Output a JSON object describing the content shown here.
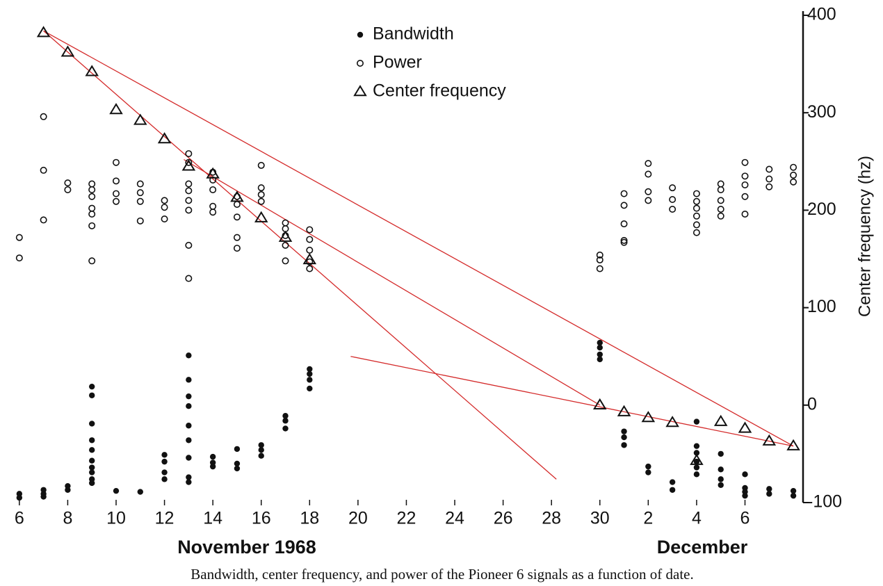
{
  "chart_data": {
    "type": "scatter",
    "caption": "Bandwidth, center frequency, and power  of the Pioneer 6 signals as a function of date.",
    "x_labels": [
      "November 1968",
      "December"
    ],
    "y_label": "Center frequency (hz)",
    "xlim": [
      5.2,
      38.4
    ],
    "xticks": [
      6,
      8,
      10,
      12,
      14,
      16,
      18,
      20,
      22,
      24,
      26,
      28,
      30,
      {
        "value": 32,
        "label": "2"
      },
      {
        "value": 34,
        "label": "4"
      },
      {
        "value": 36,
        "label": "6"
      }
    ],
    "ylim": [
      -100,
      400
    ],
    "yticks": [
      400,
      300,
      200,
      100,
      0,
      -100
    ],
    "series": [
      {
        "name": "Bandwidth",
        "marker": "dot",
        "color": "#111111",
        "x": [
          6,
          6,
          7,
          7,
          7,
          8,
          8,
          9,
          9,
          9,
          9,
          9,
          9,
          9,
          9,
          9,
          9,
          10,
          11,
          12,
          12,
          12,
          12,
          13,
          13,
          13,
          13,
          13,
          13,
          13,
          13,
          13,
          14,
          14,
          14,
          15,
          15,
          15,
          16,
          16,
          16,
          17,
          17,
          17,
          18,
          18,
          18,
          18,
          30,
          30,
          30,
          30,
          31,
          31,
          31,
          32,
          32,
          33,
          33,
          34,
          34,
          34,
          34,
          34,
          34,
          35,
          35,
          35,
          35,
          36,
          36,
          36,
          36,
          37,
          37,
          38,
          38
        ],
        "values": [
          -91,
          -95,
          -87,
          -91,
          -94,
          -83,
          -87,
          19,
          10,
          -19,
          -36,
          -46,
          -57,
          -64,
          -69,
          -76,
          -80,
          -88,
          -89,
          -51,
          -58,
          -69,
          -76,
          51,
          26,
          9,
          -1,
          -21,
          -36,
          -54,
          -74,
          -79,
          -53,
          -59,
          -63,
          -45,
          -60,
          -65,
          -41,
          -46,
          -52,
          -11,
          -16,
          -24,
          37,
          32,
          26,
          17,
          64,
          59,
          52,
          47,
          -27,
          -33,
          -41,
          -63,
          -69,
          -79,
          -87,
          -17,
          -42,
          -49,
          -58,
          -64,
          -71,
          -50,
          -66,
          -76,
          -82,
          -71,
          -85,
          -89,
          -93,
          -86,
          -91,
          -88,
          -93
        ]
      },
      {
        "name": "Power",
        "marker": "circle",
        "color": "#111111",
        "x": [
          6,
          6,
          7,
          7,
          7,
          8,
          8,
          9,
          9,
          9,
          9,
          9,
          9,
          9,
          10,
          10,
          10,
          10,
          11,
          11,
          11,
          11,
          12,
          12,
          12,
          13,
          13,
          13,
          13,
          13,
          13,
          13,
          13,
          14,
          14,
          14,
          14,
          14,
          15,
          15,
          15,
          15,
          15,
          16,
          16,
          16,
          16,
          17,
          17,
          17,
          17,
          17,
          18,
          18,
          18,
          18,
          18,
          30,
          30,
          30,
          31,
          31,
          31,
          31,
          31,
          32,
          32,
          32,
          32,
          33,
          33,
          33,
          34,
          34,
          34,
          34,
          34,
          34,
          35,
          35,
          35,
          35,
          35,
          36,
          36,
          36,
          36,
          36,
          37,
          37,
          37,
          38,
          38,
          38
        ],
        "values": [
          172,
          151,
          296,
          241,
          190,
          228,
          221,
          227,
          221,
          214,
          202,
          196,
          184,
          148,
          249,
          230,
          217,
          209,
          227,
          218,
          209,
          189,
          210,
          203,
          191,
          258,
          249,
          227,
          220,
          210,
          200,
          164,
          130,
          239,
          231,
          221,
          204,
          198,
          214,
          206,
          193,
          172,
          161,
          246,
          223,
          216,
          209,
          187,
          181,
          174,
          164,
          148,
          180,
          170,
          159,
          147,
          140,
          154,
          149,
          140,
          217,
          205,
          186,
          169,
          167,
          248,
          237,
          219,
          210,
          223,
          211,
          201,
          217,
          209,
          202,
          194,
          185,
          177,
          227,
          221,
          210,
          201,
          194,
          249,
          235,
          226,
          214,
          196,
          242,
          232,
          224,
          244,
          236,
          229
        ]
      },
      {
        "name": "Center frequency",
        "marker": "triangle",
        "color": "#111111",
        "x": [
          7,
          8,
          9,
          10,
          11,
          12,
          13,
          14,
          15,
          16,
          17,
          18,
          30,
          31,
          32,
          33,
          34,
          35,
          36,
          37,
          38
        ],
        "values": [
          382,
          362,
          342,
          303,
          292,
          273,
          245,
          237,
          213,
          192,
          172,
          149,
          0,
          -7,
          -13,
          -18,
          -57,
          -17,
          -24,
          -37,
          -42
        ]
      }
    ],
    "trend_lines": [
      {
        "color": "#d42a2a",
        "x": [
          7,
          38
        ],
        "values": [
          384,
          -42
        ]
      },
      {
        "color": "#d42a2a",
        "x": [
          7,
          28.2
        ],
        "values": [
          384,
          -76
        ]
      },
      {
        "color": "#d42a2a",
        "x": [
          12.8,
          30
        ],
        "values": [
          252,
          0
        ]
      },
      {
        "color": "#d42a2a",
        "x": [
          19.7,
          38
        ],
        "values": [
          50,
          -42
        ]
      }
    ]
  }
}
